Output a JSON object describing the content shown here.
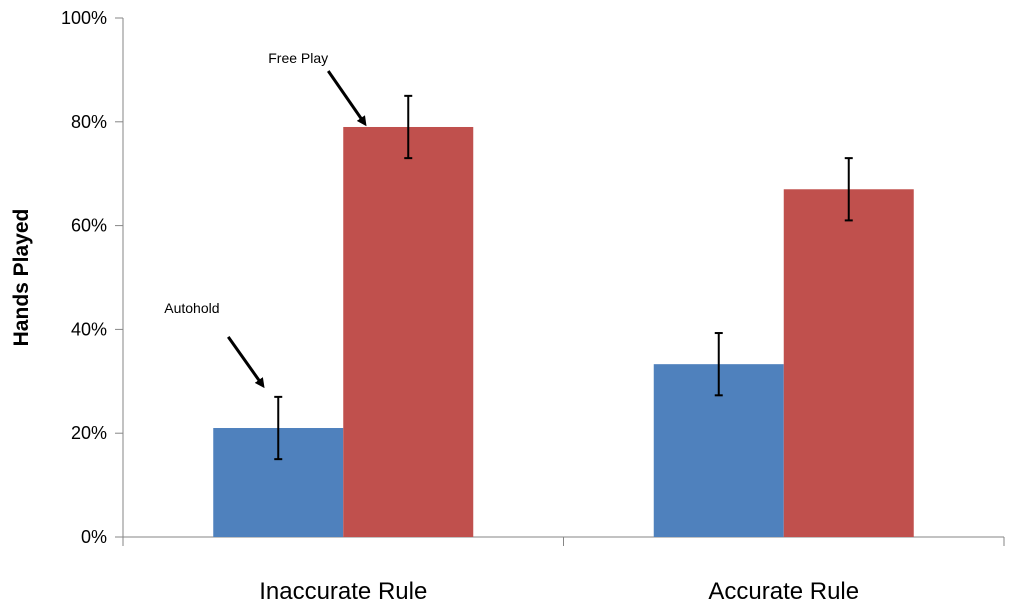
{
  "chart_data": {
    "type": "bar",
    "ylabel": "Hands Played",
    "xlabel": "",
    "categories": [
      "Inaccurate Rule",
      "Accurate Rule"
    ],
    "ylim": [
      0,
      100
    ],
    "y_ticks": [
      0,
      20,
      40,
      60,
      80,
      100
    ],
    "y_tick_labels": [
      "0%",
      "20%",
      "40%",
      "60%",
      "80%",
      "100%"
    ],
    "grid": false,
    "legend": "none",
    "series": [
      {
        "values": [
          21,
          33.3
        ],
        "error": [
          [
            6,
            6
          ],
          [
            6,
            6
          ]
        ],
        "color": "#4F81BD"
      },
      {
        "values": [
          79,
          67
        ],
        "error": [
          [
            6,
            6
          ],
          [
            6,
            6
          ]
        ],
        "color": "#C0504D"
      }
    ],
    "annotations": [
      {
        "text": "Autohold",
        "category": "Inaccurate Rule",
        "series_index": 0
      },
      {
        "text": "Free Play",
        "category": "Inaccurate Rule",
        "series_index": 1
      }
    ]
  }
}
